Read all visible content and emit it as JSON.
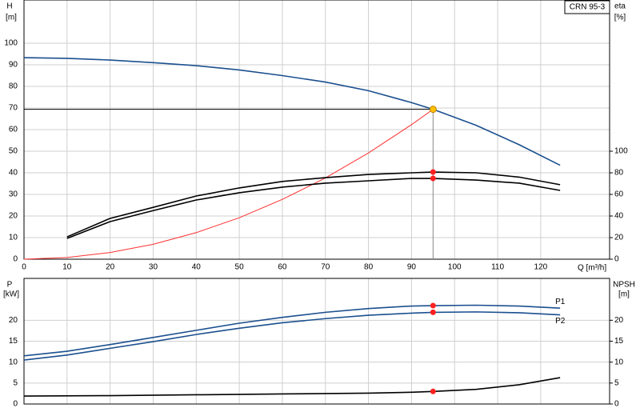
{
  "chart_data": [
    {
      "type": "line",
      "title": "CRN 95-3",
      "x_label": "Q [m³/h]",
      "y_label": "H",
      "y_unit": "[m]",
      "y2_label": "eta",
      "y2_unit": "[%]",
      "xlim": [
        0,
        136
      ],
      "xticks": [
        0,
        10,
        20,
        30,
        40,
        50,
        60,
        70,
        80,
        90,
        100,
        110,
        120
      ],
      "ylim": [
        0,
        120
      ],
      "yticks": [
        0,
        10,
        20,
        30,
        40,
        50,
        60,
        70,
        80,
        90,
        100
      ],
      "y2lim": [
        0,
        240
      ],
      "y2ticks": [
        0,
        20,
        40,
        60,
        80,
        100
      ],
      "grid": true,
      "duty_point": {
        "q": 95,
        "h": 69.4
      },
      "series": [
        {
          "color": "#1b4f8f",
          "x": [
            0,
            10,
            20,
            30,
            40,
            50,
            60,
            70,
            80,
            90,
            95,
            105,
            115,
            124.5
          ],
          "values": [
            93.3,
            93,
            92.2,
            91,
            89.6,
            87.6,
            85,
            82,
            78,
            72.5,
            69.4,
            62,
            53,
            43.5
          ]
        },
        {
          "color": "#ff3030",
          "x": [
            0,
            10,
            20,
            30,
            40,
            50,
            60,
            70,
            80,
            90,
            95
          ],
          "values": [
            0,
            0.8,
            3.1,
            6.9,
            12.3,
            19.2,
            27.7,
            37.6,
            49.2,
            62.3,
            69.4
          ]
        },
        {
          "color": "#000000",
          "axis": "y2",
          "x": [
            10,
            20,
            30,
            40,
            50,
            60,
            70,
            80,
            90,
            95,
            105,
            115,
            124.5
          ],
          "values": [
            20.7,
            37.8,
            48,
            58.5,
            66,
            72,
            75.5,
            78.5,
            80,
            80.7,
            80,
            76,
            69
          ]
        },
        {
          "color": "#000000",
          "axis": "y2",
          "x": [
            10,
            20,
            30,
            40,
            50,
            60,
            70,
            80,
            90,
            95,
            105,
            115,
            124.5
          ],
          "values": [
            19.3,
            34.8,
            45,
            54.8,
            61.5,
            66.7,
            70.4,
            72.6,
            74.8,
            74.8,
            73.3,
            70.4,
            63.7
          ]
        }
      ]
    },
    {
      "type": "line",
      "y_label": "P",
      "y_unit": "[kW]",
      "y2_label": "NPSH",
      "y2_unit": "[m]",
      "xlim": [
        0,
        136
      ],
      "xticks": [
        0,
        10,
        20,
        30,
        40,
        50,
        60,
        70,
        80,
        90,
        100,
        110,
        120
      ],
      "ylim": [
        0,
        30
      ],
      "yticks": [
        0,
        5,
        10,
        15,
        20
      ],
      "y2lim": [
        0,
        30
      ],
      "y2ticks": [
        0,
        5,
        10,
        15,
        20
      ],
      "grid": true,
      "series": [
        {
          "name": "P1",
          "color": "#1b4f8f",
          "x": [
            0,
            10,
            20,
            30,
            40,
            50,
            60,
            70,
            80,
            90,
            95,
            105,
            115,
            124.5
          ],
          "values": [
            11.5,
            12.6,
            14.2,
            15.9,
            17.6,
            19.3,
            20.7,
            21.9,
            22.8,
            23.4,
            23.5,
            23.6,
            23.4,
            22.9
          ]
        },
        {
          "name": "P2",
          "color": "#1b4f8f",
          "x": [
            0,
            10,
            20,
            30,
            40,
            50,
            60,
            70,
            80,
            90,
            95,
            105,
            115,
            124.5
          ],
          "values": [
            10.5,
            11.7,
            13.3,
            14.9,
            16.6,
            18.1,
            19.4,
            20.4,
            21.2,
            21.7,
            21.9,
            22,
            21.8,
            21.3
          ]
        },
        {
          "color": "#000000",
          "axis": "y2",
          "x": [
            0,
            20,
            40,
            60,
            80,
            90,
            95,
            105,
            115,
            124.5
          ],
          "values": [
            1.9,
            2,
            2.2,
            2.4,
            2.6,
            2.8,
            3,
            3.5,
            4.6,
            6.3
          ]
        }
      ]
    }
  ]
}
